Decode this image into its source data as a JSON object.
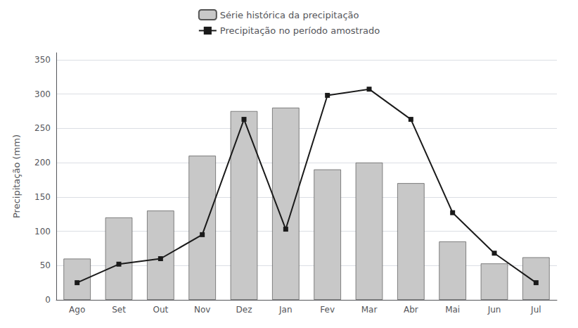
{
  "chart_data": {
    "type": "bar",
    "categories": [
      "Ago",
      "Set",
      "Out",
      "Nov",
      "Dez",
      "Jan",
      "Fev",
      "Mar",
      "Abr",
      "Mai",
      "Jun",
      "Jul"
    ],
    "series": [
      {
        "name": "Série histórica da precipitação",
        "type": "bar",
        "color": "#c8c8c8",
        "values": [
          60,
          120,
          130,
          210,
          275,
          280,
          190,
          200,
          170,
          85,
          53,
          62
        ]
      },
      {
        "name": "Precipitação no período amostrado",
        "type": "line",
        "color": "#1a1a1a",
        "marker": "square",
        "values": [
          25,
          52,
          60,
          95,
          263,
          103,
          298,
          307,
          263,
          127,
          68,
          25
        ]
      }
    ],
    "ylabel": "Precipitação (mm)",
    "ylim": [
      0,
      360
    ],
    "yticks": [
      0,
      50,
      100,
      150,
      200,
      250,
      300,
      350
    ],
    "grid": true,
    "legend": "top"
  }
}
